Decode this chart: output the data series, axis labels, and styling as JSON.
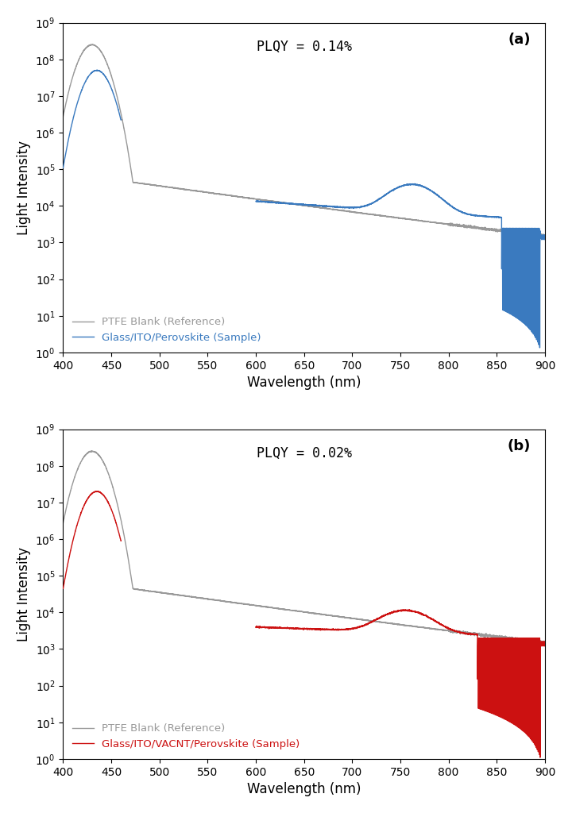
{
  "fig_width": 7.2,
  "fig_height": 10.24,
  "dpi": 100,
  "background_color": "#ffffff",
  "panel_a": {
    "label": "(a)",
    "plqy_text": "PLQY = 0.14%",
    "reference_color": "#999999",
    "sample_color": "#3a7abf",
    "reference_label": "PTFE Blank (Reference)",
    "sample_label": "Glass/ITO/Perovskite (Sample)",
    "xlim": [
      400,
      900
    ],
    "ylim_log": [
      1.0,
      1000000000.0
    ],
    "xlabel": "Wavelength (nm)",
    "ylabel": "Light Intensity"
  },
  "panel_b": {
    "label": "(b)",
    "plqy_text": "PLQY = 0.02%",
    "reference_color": "#999999",
    "sample_color": "#cc1111",
    "reference_label": "PTFE Blank (Reference)",
    "sample_label": "Glass/ITO/VACNT/Perovskite (Sample)",
    "xlim": [
      400,
      900
    ],
    "ylim_log": [
      1.0,
      1000000000.0
    ],
    "xlabel": "Wavelength (nm)",
    "ylabel": "Light Intensity"
  }
}
